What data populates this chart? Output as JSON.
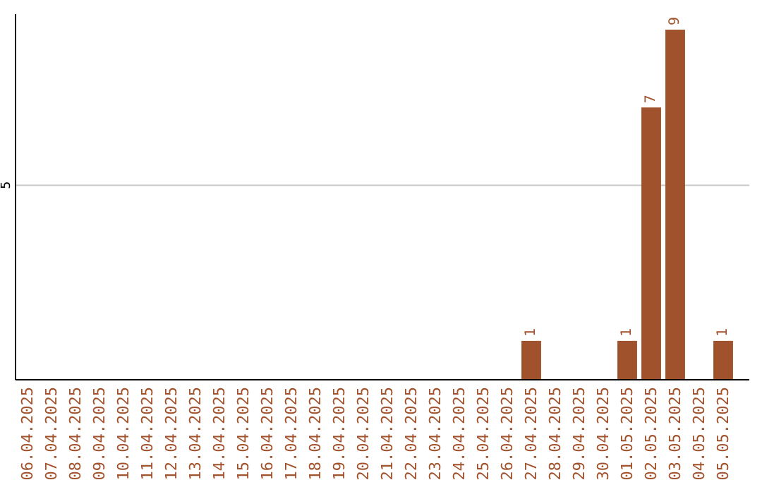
{
  "chart_data": {
    "type": "bar",
    "categories": [
      "06.04.2025",
      "07.04.2025",
      "08.04.2025",
      "09.04.2025",
      "10.04.2025",
      "11.04.2025",
      "12.04.2025",
      "13.04.2025",
      "14.04.2025",
      "15.04.2025",
      "16.04.2025",
      "17.04.2025",
      "18.04.2025",
      "19.04.2025",
      "20.04.2025",
      "21.04.2025",
      "22.04.2025",
      "23.04.2025",
      "24.04.2025",
      "25.04.2025",
      "26.04.2025",
      "27.04.2025",
      "28.04.2025",
      "29.04.2025",
      "30.04.2025",
      "01.05.2025",
      "02.05.2025",
      "03.05.2025",
      "04.05.2025",
      "05.05.2025"
    ],
    "values": [
      null,
      null,
      null,
      null,
      null,
      null,
      null,
      null,
      null,
      null,
      null,
      null,
      null,
      null,
      null,
      null,
      null,
      null,
      null,
      null,
      null,
      1,
      null,
      null,
      null,
      1,
      7,
      9,
      null,
      1
    ],
    "value_labels": [
      null,
      null,
      null,
      null,
      null,
      null,
      null,
      null,
      null,
      null,
      null,
      null,
      null,
      null,
      null,
      null,
      null,
      null,
      null,
      null,
      null,
      "1",
      null,
      null,
      null,
      "1",
      "7",
      "9",
      null,
      "1"
    ],
    "color": "#a0522d",
    "ylim": [
      0,
      9.4
    ],
    "yticks": [
      {
        "value": 0,
        "label": null
      },
      5
    ],
    "grid": "y"
  }
}
